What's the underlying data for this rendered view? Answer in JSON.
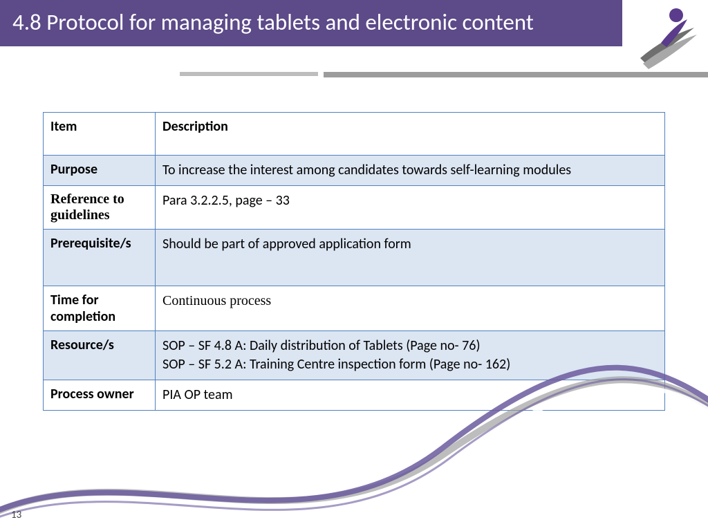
{
  "theme": {
    "title_bg": "#5c4a89",
    "table_border": "#4f81bd",
    "row_shade": "#dce5f2",
    "swoosh_purple": "#6b5a9e",
    "swoosh_grey": "#9a9a9a",
    "swoosh_white": "#ffffff",
    "logo_purple": "#5a3b8c",
    "logo_grey_dark": "#6f6f6f",
    "logo_grey_light": "#a8a8a8"
  },
  "title": "4.8 Protocol for managing tablets and electronic content",
  "page_number": "13",
  "table": {
    "header": {
      "item": "Item",
      "desc": "Description"
    },
    "rows": [
      {
        "label": "Purpose",
        "desc": "To increase the interest among candidates towards self-learning modules",
        "shade": true,
        "justify": true,
        "label_serif": false,
        "desc_serif": false,
        "tall": false
      },
      {
        "label": "Reference to guidelines",
        "desc": "Para 3.2.2.5, page – 33",
        "shade": false,
        "justify": false,
        "label_serif": true,
        "desc_serif": false,
        "tall": false
      },
      {
        "label": "Prerequisite/s",
        "desc": "Should be part of approved application form",
        "shade": true,
        "justify": false,
        "label_serif": false,
        "desc_serif": false,
        "tall": true
      },
      {
        "label": "Time for completion",
        "desc": "Continuous process",
        "shade": false,
        "justify": false,
        "label_serif": false,
        "desc_serif": true,
        "tall": false
      },
      {
        "label": "Resource/s",
        "desc": "SOP – SF 4.8 A: Daily distribution of Tablets (Page no- 76)\nSOP – SF 5.2 A: Training Centre inspection form (Page no- 162)",
        "shade": true,
        "justify": false,
        "label_serif": false,
        "desc_serif": false,
        "tall": false
      },
      {
        "label": "Process owner",
        "desc": "PIA OP team",
        "shade": false,
        "justify": false,
        "label_serif": false,
        "desc_serif": false,
        "tall": false
      }
    ]
  }
}
